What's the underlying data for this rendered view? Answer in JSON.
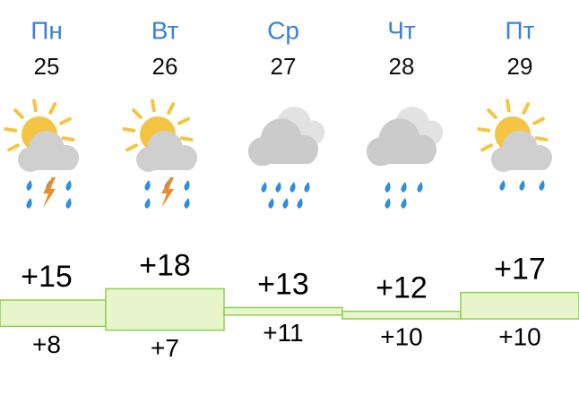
{
  "days": [
    {
      "name": "Пн",
      "date": 25,
      "high": {
        "value": 15,
        "label": "+15"
      },
      "low": {
        "value": 8,
        "label": "+8"
      }
    },
    {
      "name": "Вт",
      "date": 26,
      "high": {
        "value": 18,
        "label": "+18"
      },
      "low": {
        "value": 7,
        "label": "+7"
      }
    },
    {
      "name": "Ср",
      "date": 27,
      "high": {
        "value": 13,
        "label": "+13"
      },
      "low": {
        "value": 11,
        "label": "+11"
      }
    },
    {
      "name": "Чт",
      "date": 28,
      "high": {
        "value": 12,
        "label": "+12"
      },
      "low": {
        "value": 10,
        "label": "+10"
      }
    },
    {
      "name": "Пт",
      "date": 29,
      "high": {
        "value": 17,
        "label": "+17"
      },
      "low": {
        "value": 10,
        "label": "+10"
      }
    }
  ]
}
